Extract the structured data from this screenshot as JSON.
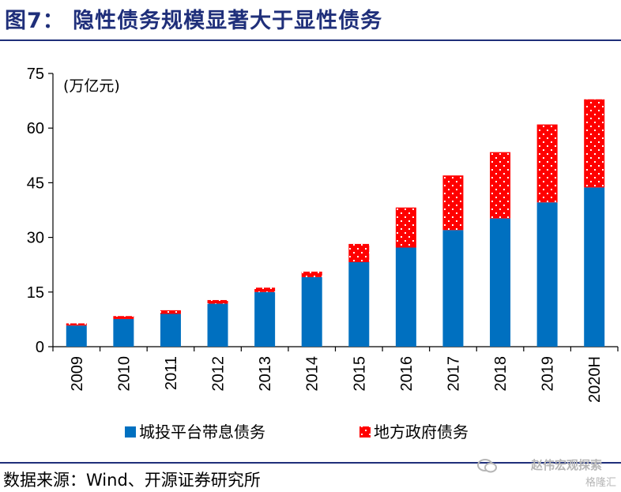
{
  "header": {
    "title": "图7：  隐性债务规模显著大于显性债务"
  },
  "chart_data": {
    "type": "bar",
    "stacked": true,
    "title": "隐性债务规模显著大于显性债务",
    "ylabel": "(万亿元)",
    "xlabel": "",
    "ylim": [
      0,
      75
    ],
    "yticks": [
      0,
      15,
      30,
      45,
      60,
      75
    ],
    "ytick_labels": [
      "0",
      "15",
      "30",
      "45",
      "60",
      "75"
    ],
    "categories": [
      "2009",
      "2010",
      "2011",
      "2012",
      "2013",
      "2014",
      "2015",
      "2016",
      "2017",
      "2018",
      "2019",
      "2020H"
    ],
    "series": [
      {
        "name": "城投平台带息债务",
        "color": "#0070c0",
        "pattern": "solid",
        "values": [
          5.8,
          7.6,
          9.0,
          11.8,
          15.0,
          19.1,
          23.2,
          27.2,
          32.0,
          35.2,
          39.6,
          43.7
        ]
      },
      {
        "name": "地方政府债务",
        "color": "#ff0000",
        "pattern": "dotted",
        "values": [
          0.6,
          0.8,
          1.0,
          1.0,
          1.2,
          1.5,
          5.0,
          11.0,
          15.0,
          18.2,
          21.4,
          24.2
        ]
      }
    ],
    "legend_position": "bottom"
  },
  "footer": {
    "source": "数据来源：Wind、开源证券研究所",
    "watermark_line1": "赵伟宏观探索",
    "watermark_line2": "格隆汇"
  }
}
